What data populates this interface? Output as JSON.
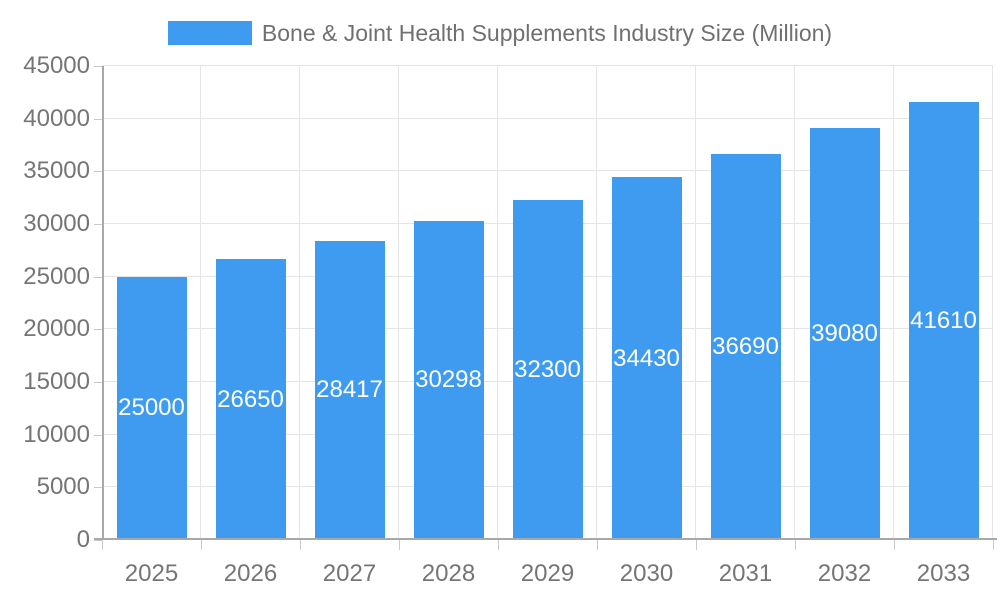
{
  "chart_data": {
    "type": "bar",
    "title": "Bone & Joint Health Supplements Industry Size (Million)",
    "categories": [
      "2025",
      "2026",
      "2027",
      "2028",
      "2029",
      "2030",
      "2031",
      "2032",
      "2033"
    ],
    "values": [
      25000,
      26650,
      28417,
      30298,
      32300,
      34430,
      36690,
      39080,
      41610
    ],
    "xlabel": "",
    "ylabel": "",
    "ylim": [
      0,
      45000
    ],
    "ytick_step": 5000,
    "ytick_labels": [
      "0",
      "5000",
      "10000",
      "15000",
      "20000",
      "25000",
      "30000",
      "35000",
      "40000",
      "45000"
    ],
    "grid": true,
    "legend_position": "top-center",
    "bar_label_position": "center-inside",
    "colors": {
      "bar": "#3e9bf0",
      "bar_label": "#ffffff",
      "axis_text": "#757575",
      "legend_text": "#707070",
      "gridline": "#e5e5e5",
      "axis_line": "#a8a8a8",
      "tick": "#c8c8c8",
      "background": "#ffffff"
    }
  }
}
